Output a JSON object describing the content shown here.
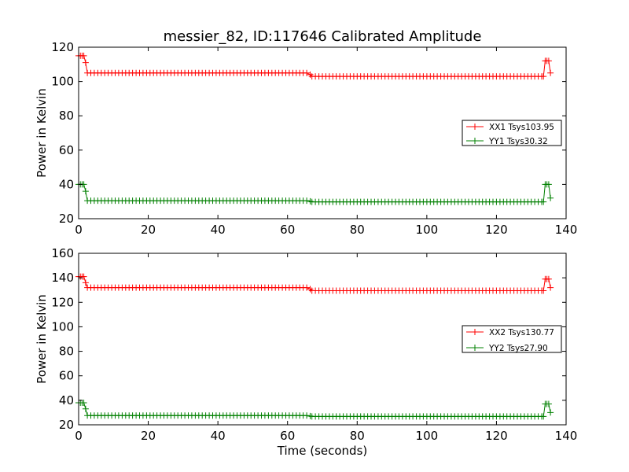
{
  "chart_data": [
    {
      "type": "line",
      "title": "messier_82, ID:117646 Calibrated Amplitude",
      "xlabel": "",
      "ylabel": "Power in Kelvin",
      "xlim": [
        0,
        140
      ],
      "ylim": [
        20,
        120
      ],
      "xticks": [
        0,
        20,
        40,
        60,
        80,
        100,
        120,
        140
      ],
      "yticks": [
        20,
        40,
        60,
        80,
        100,
        120
      ],
      "legend_position": "center-right",
      "series": [
        {
          "name": "XX1 Tsys103.95",
          "color": "#ff0000",
          "marker": "+",
          "segments": [
            {
              "x_start": 0,
              "x_end": 1.5,
              "value": 115
            },
            {
              "x_start": 2,
              "x_end": 66,
              "value": 105
            },
            {
              "x_start": 67,
              "x_end": 133,
              "value": 103
            },
            {
              "x_start": 134,
              "x_end": 135,
              "value": 112
            }
          ],
          "x": [
            0,
            0.5,
            1,
            1.5,
            2,
            2.5,
            134,
            134.5,
            135,
            135.5
          ],
          "y": [
            115,
            115,
            115,
            115,
            111,
            105,
            112,
            112,
            112,
            105
          ]
        },
        {
          "name": "YY1 Tsys30.32",
          "color": "#008000",
          "marker": "+",
          "segments": [
            {
              "x_start": 0,
              "x_end": 1.5,
              "value": 40
            },
            {
              "x_start": 2,
              "x_end": 66,
              "value": 30.5
            },
            {
              "x_start": 67,
              "x_end": 133,
              "value": 29.8
            },
            {
              "x_start": 134,
              "x_end": 135,
              "value": 40
            }
          ],
          "x": [
            0,
            0.5,
            1,
            1.5,
            2,
            2.5,
            134,
            134.5,
            135,
            135.5
          ],
          "y": [
            40,
            40,
            40,
            40,
            36,
            30.5,
            40,
            40,
            40,
            32
          ]
        }
      ]
    },
    {
      "type": "line",
      "title": "",
      "xlabel": "Time (seconds)",
      "ylabel": "Power in Kelvin",
      "xlim": [
        0,
        140
      ],
      "ylim": [
        20,
        160
      ],
      "xticks": [
        0,
        20,
        40,
        60,
        80,
        100,
        120,
        140
      ],
      "yticks": [
        20,
        40,
        60,
        80,
        100,
        120,
        140,
        160
      ],
      "legend_position": "center-right",
      "series": [
        {
          "name": "XX2 Tsys130.77",
          "color": "#ff0000",
          "marker": "+",
          "segments": [
            {
              "x_start": 0,
              "x_end": 1.5,
              "value": 141
            },
            {
              "x_start": 2,
              "x_end": 66,
              "value": 132
            },
            {
              "x_start": 67,
              "x_end": 133,
              "value": 129.5
            },
            {
              "x_start": 134,
              "x_end": 135,
              "value": 139
            }
          ],
          "x": [
            0,
            0.5,
            1,
            1.5,
            2,
            2.5,
            134,
            134.5,
            135,
            135.5
          ],
          "y": [
            141,
            141,
            141,
            141,
            136,
            132,
            139,
            139,
            139,
            132
          ]
        },
        {
          "name": "YY2 Tsys27.90",
          "color": "#008000",
          "marker": "+",
          "segments": [
            {
              "x_start": 0,
              "x_end": 1.5,
              "value": 38
            },
            {
              "x_start": 2,
              "x_end": 66,
              "value": 27.5
            },
            {
              "x_start": 67,
              "x_end": 133,
              "value": 26.8
            },
            {
              "x_start": 134,
              "x_end": 135,
              "value": 37
            }
          ],
          "x": [
            0,
            0.5,
            1,
            1.5,
            2,
            2.5,
            134,
            134.5,
            135,
            135.5
          ],
          "y": [
            38,
            38,
            38,
            38,
            33,
            27.5,
            37,
            37,
            37,
            30
          ]
        }
      ]
    }
  ]
}
